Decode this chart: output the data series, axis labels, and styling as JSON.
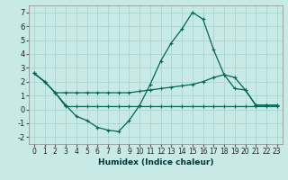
{
  "xlabel": "Humidex (Indice chaleur)",
  "xlim": [
    -0.5,
    23.5
  ],
  "ylim": [
    -2.5,
    7.5
  ],
  "yticks": [
    -2,
    -1,
    0,
    1,
    2,
    3,
    4,
    5,
    6,
    7
  ],
  "xticks": [
    0,
    1,
    2,
    3,
    4,
    5,
    6,
    7,
    8,
    9,
    10,
    11,
    12,
    13,
    14,
    15,
    16,
    17,
    18,
    19,
    20,
    21,
    22,
    23
  ],
  "bg_color": "#c8eae6",
  "grid_color": "#a8d4d0",
  "line_color": "#006655",
  "lines": [
    {
      "x": [
        0,
        1,
        2,
        3,
        4,
        5,
        6,
        7,
        8,
        9,
        10,
        11,
        12,
        13,
        14,
        15,
        16,
        17,
        18,
        19,
        20,
        21,
        22,
        23
      ],
      "y": [
        2.6,
        2.0,
        1.2,
        0.3,
        -0.5,
        -0.8,
        -1.3,
        -1.5,
        -1.6,
        -0.8,
        0.3,
        1.8,
        3.5,
        4.8,
        5.8,
        7.0,
        6.5,
        4.3,
        2.5,
        2.3,
        1.4,
        0.3,
        0.3,
        0.3
      ]
    },
    {
      "x": [
        0,
        1,
        2,
        3,
        4,
        5,
        6,
        7,
        8,
        9,
        10,
        11,
        12,
        13,
        14,
        15,
        16,
        17,
        18,
        19,
        20,
        21,
        22,
        23
      ],
      "y": [
        2.6,
        2.0,
        1.2,
        1.2,
        1.2,
        1.2,
        1.2,
        1.2,
        1.2,
        1.2,
        1.3,
        1.4,
        1.5,
        1.6,
        1.7,
        1.8,
        2.0,
        2.3,
        2.5,
        1.5,
        1.4,
        0.3,
        0.3,
        0.3
      ]
    },
    {
      "x": [
        0,
        1,
        2,
        3,
        4,
        5,
        6,
        7,
        8,
        9,
        10,
        11,
        12,
        13,
        14,
        15,
        16,
        17,
        18,
        19,
        20,
        21,
        22,
        23
      ],
      "y": [
        2.6,
        2.0,
        1.2,
        0.2,
        0.2,
        0.2,
        0.2,
        0.2,
        0.2,
        0.2,
        0.2,
        0.2,
        0.2,
        0.2,
        0.2,
        0.2,
        0.2,
        0.2,
        0.2,
        0.2,
        0.2,
        0.2,
        0.2,
        0.2
      ]
    }
  ]
}
